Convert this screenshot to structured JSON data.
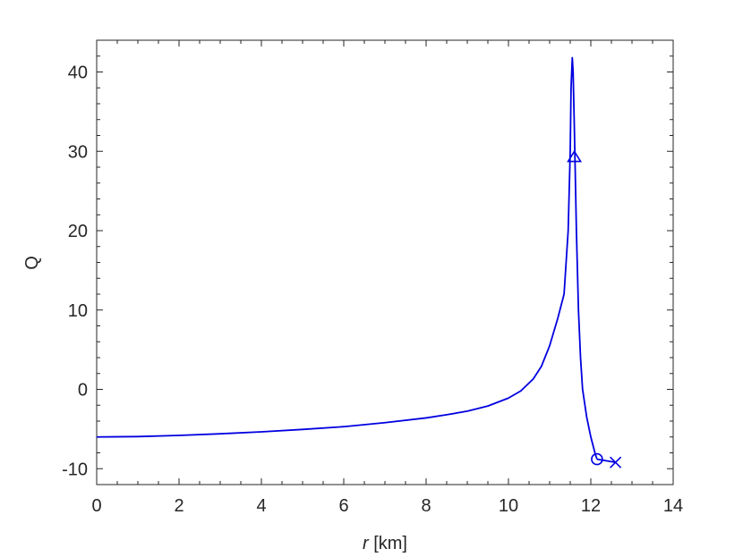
{
  "chart_data": {
    "type": "line",
    "title": "",
    "xlabel_var": "r",
    "xlabel_unit": " [km]",
    "ylabel": "Q",
    "xlim": [
      0,
      14
    ],
    "ylim": [
      -12,
      44
    ],
    "xticks": [
      0,
      2,
      4,
      6,
      8,
      10,
      12,
      14
    ],
    "yticks": [
      -10,
      0,
      10,
      20,
      30,
      40
    ],
    "xtick_labels": [
      "0",
      "2",
      "4",
      "6",
      "8",
      "10",
      "12",
      "14"
    ],
    "ytick_labels": [
      "-10",
      "0",
      "10",
      "20",
      "30",
      "40"
    ],
    "grid": false,
    "line_color": "#0000e0",
    "series": [
      {
        "x": [
          0,
          1,
          2,
          3,
          4,
          5,
          6,
          7,
          8,
          8.5,
          9,
          9.5,
          10,
          10.3,
          10.6,
          10.8,
          11,
          11.2,
          11.35,
          11.45,
          11.5,
          11.52,
          11.55,
          11.57,
          11.6,
          11.65,
          11.7,
          11.75,
          11.8,
          11.9,
          12.0,
          12.1,
          12.15
        ],
        "y": [
          -6.0,
          -5.95,
          -5.8,
          -5.6,
          -5.35,
          -5.05,
          -4.7,
          -4.2,
          -3.6,
          -3.2,
          -2.75,
          -2.1,
          -1.1,
          -0.2,
          1.3,
          2.9,
          5.5,
          9.0,
          12.0,
          20.0,
          30.0,
          38.0,
          41.8,
          40.0,
          33.0,
          20.0,
          10.0,
          4.0,
          0.0,
          -3.5,
          -6.0,
          -8.0,
          -8.8
        ]
      }
    ],
    "markers": [
      {
        "symbol": "triangle",
        "x": 11.6,
        "y": 29.2
      },
      {
        "symbol": "circle",
        "x": 12.15,
        "y": -8.8
      },
      {
        "symbol": "cross",
        "x": 12.6,
        "y": -9.2
      }
    ],
    "tail_segment": {
      "x": [
        12.15,
        12.6
      ],
      "y": [
        -8.8,
        -9.2
      ]
    }
  }
}
